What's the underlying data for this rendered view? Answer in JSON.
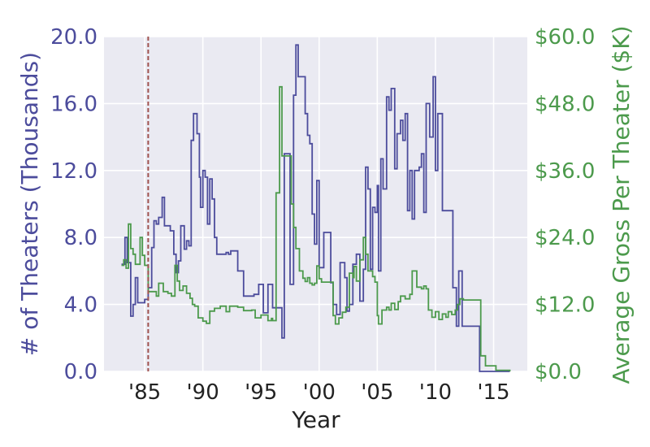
{
  "chart_data": {
    "type": "line",
    "xlabel": "Year",
    "ylabel_left": "# of Theaters (Thousands)",
    "ylabel_right": "Average Gross Per Theater ($K)",
    "xlim": [
      1981.5,
      2017.9
    ],
    "ylim_left": [
      0,
      20
    ],
    "ylim_right": [
      0,
      60
    ],
    "x_ticks": [
      {
        "value": 1985,
        "label": "'85"
      },
      {
        "value": 1990,
        "label": "'90"
      },
      {
        "value": 1995,
        "label": "'95"
      },
      {
        "value": 2000,
        "label": "'00"
      },
      {
        "value": 2005,
        "label": "'05"
      },
      {
        "value": 2010,
        "label": "'10"
      },
      {
        "value": 2015,
        "label": "'15"
      }
    ],
    "y_ticks_left": [
      {
        "value": 0,
        "label": "0.0"
      },
      {
        "value": 4,
        "label": "4.0"
      },
      {
        "value": 8,
        "label": "8.0"
      },
      {
        "value": 12,
        "label": "12.0"
      },
      {
        "value": 16,
        "label": "16.0"
      },
      {
        "value": 20,
        "label": "20.0"
      }
    ],
    "y_ticks_right": [
      {
        "value": 0,
        "label": "$0.0"
      },
      {
        "value": 12,
        "label": "$12.0"
      },
      {
        "value": 24,
        "label": "$24.0"
      },
      {
        "value": 36,
        "label": "$36.0"
      },
      {
        "value": 48,
        "label": "$48.0"
      },
      {
        "value": 60,
        "label": "$60.0"
      }
    ],
    "grid": true,
    "vline": {
      "x": 1985.3,
      "color": "#a0524f",
      "style": "dashed"
    },
    "colors": {
      "background": "#eaeaf2",
      "grid": "#ffffff",
      "theaters": "#4c4c9c",
      "gross": "#4c9a4c",
      "left_axis_text": "#4c4c9c",
      "right_axis_text": "#4c9a4c",
      "xlabel_text": "#222222"
    },
    "series": [
      {
        "axis": "left",
        "color": "#4c4c9c",
        "step": true,
        "points": [
          [
            1983.0,
            6.4
          ],
          [
            1983.3,
            8.0
          ],
          [
            1983.5,
            6.5
          ],
          [
            1983.8,
            3.3
          ],
          [
            1984.0,
            4.0
          ],
          [
            1984.2,
            5.6
          ],
          [
            1984.4,
            4.1
          ],
          [
            1985.0,
            4.3
          ],
          [
            1985.3,
            5.0
          ],
          [
            1985.6,
            7.4
          ],
          [
            1985.8,
            9.0
          ],
          [
            1986.0,
            8.8
          ],
          [
            1986.2,
            9.2
          ],
          [
            1986.5,
            10.4
          ],
          [
            1986.7,
            8.7
          ],
          [
            1987.2,
            8.4
          ],
          [
            1987.5,
            7.0
          ],
          [
            1987.7,
            5.9
          ],
          [
            1987.9,
            6.6
          ],
          [
            1988.1,
            8.7
          ],
          [
            1988.4,
            7.3
          ],
          [
            1988.6,
            7.8
          ],
          [
            1988.8,
            7.5
          ],
          [
            1989.0,
            13.8
          ],
          [
            1989.2,
            15.4
          ],
          [
            1989.5,
            14.2
          ],
          [
            1989.7,
            11.6
          ],
          [
            1989.8,
            9.8
          ],
          [
            1990.0,
            12.0
          ],
          [
            1990.2,
            11.6
          ],
          [
            1990.4,
            8.8
          ],
          [
            1990.6,
            11.5
          ],
          [
            1990.8,
            10.3
          ],
          [
            1991.0,
            8.0
          ],
          [
            1991.2,
            7.0
          ],
          [
            1992.0,
            7.1
          ],
          [
            1992.2,
            7.0
          ],
          [
            1992.4,
            7.2
          ],
          [
            1992.6,
            7.2
          ],
          [
            1993.0,
            6.0
          ],
          [
            1993.5,
            4.5
          ],
          [
            1994.4,
            4.6
          ],
          [
            1994.8,
            5.2
          ],
          [
            1995.2,
            3.5
          ],
          [
            1995.6,
            5.2
          ],
          [
            1996.0,
            3.8
          ],
          [
            1996.5,
            3.8
          ],
          [
            1996.8,
            2.0
          ],
          [
            1997.0,
            13.0
          ],
          [
            1997.5,
            5.2
          ],
          [
            1997.8,
            16.5
          ],
          [
            1998.0,
            19.5
          ],
          [
            1998.2,
            17.6
          ],
          [
            1998.8,
            15.4
          ],
          [
            1999.0,
            14.1
          ],
          [
            1999.2,
            13.6
          ],
          [
            1999.4,
            9.4
          ],
          [
            1999.6,
            7.6
          ],
          [
            1999.8,
            11.4
          ],
          [
            2000.0,
            6.2
          ],
          [
            2000.4,
            8.3
          ],
          [
            2001.0,
            5.3
          ],
          [
            2001.2,
            4.0
          ],
          [
            2001.5,
            3.4
          ],
          [
            2001.8,
            6.5
          ],
          [
            2002.2,
            5.6
          ],
          [
            2002.4,
            3.6
          ],
          [
            2002.6,
            4.0
          ],
          [
            2002.9,
            6.4
          ],
          [
            2003.2,
            7.0
          ],
          [
            2003.5,
            4.2
          ],
          [
            2003.8,
            6.1
          ],
          [
            2004.0,
            12.2
          ],
          [
            2004.2,
            10.9
          ],
          [
            2004.4,
            6.1
          ],
          [
            2004.6,
            9.8
          ],
          [
            2004.8,
            9.5
          ],
          [
            2005.0,
            11.1
          ],
          [
            2005.1,
            6.0
          ],
          [
            2005.3,
            12.7
          ],
          [
            2005.5,
            10.9
          ],
          [
            2005.8,
            16.4
          ],
          [
            2006.0,
            15.6
          ],
          [
            2006.2,
            16.9
          ],
          [
            2006.5,
            12.1
          ],
          [
            2006.7,
            14.2
          ],
          [
            2007.0,
            15.0
          ],
          [
            2007.2,
            13.8
          ],
          [
            2007.4,
            15.4
          ],
          [
            2007.6,
            9.6
          ],
          [
            2007.8,
            12.0
          ],
          [
            2008.0,
            9.1
          ],
          [
            2008.2,
            12.0
          ],
          [
            2008.6,
            12.2
          ],
          [
            2008.8,
            13.0
          ],
          [
            2009.0,
            9.5
          ],
          [
            2009.2,
            16.0
          ],
          [
            2009.5,
            14.0
          ],
          [
            2009.8,
            17.6
          ],
          [
            2010.0,
            12.0
          ],
          [
            2010.2,
            15.4
          ],
          [
            2010.6,
            9.6
          ],
          [
            2011.0,
            9.6
          ],
          [
            2011.5,
            5.0
          ],
          [
            2011.8,
            2.7
          ],
          [
            2012.0,
            6.0
          ],
          [
            2012.3,
            2.7
          ],
          [
            2013.8,
            0.0
          ],
          [
            2016.4,
            0.0
          ]
        ]
      },
      {
        "axis": "right",
        "color": "#4c9a4c",
        "step": true,
        "points": [
          [
            1983.0,
            19.0
          ],
          [
            1983.2,
            20.0
          ],
          [
            1983.4,
            18.5
          ],
          [
            1983.6,
            26.4
          ],
          [
            1983.8,
            22.0
          ],
          [
            1984.0,
            21.0
          ],
          [
            1984.2,
            19.2
          ],
          [
            1984.6,
            24.0
          ],
          [
            1984.8,
            20.8
          ],
          [
            1985.0,
            19.0
          ],
          [
            1985.3,
            14.3
          ],
          [
            1986.0,
            13.5
          ],
          [
            1986.2,
            15.8
          ],
          [
            1986.6,
            14.3
          ],
          [
            1987.0,
            14.0
          ],
          [
            1987.3,
            13.5
          ],
          [
            1987.6,
            19.0
          ],
          [
            1987.8,
            16.2
          ],
          [
            1988.0,
            14.5
          ],
          [
            1988.3,
            15.3
          ],
          [
            1988.6,
            14.0
          ],
          [
            1988.9,
            13.1
          ],
          [
            1989.1,
            12.0
          ],
          [
            1989.3,
            11.7
          ],
          [
            1989.6,
            9.6
          ],
          [
            1990.0,
            9.0
          ],
          [
            1990.3,
            8.6
          ],
          [
            1990.6,
            10.8
          ],
          [
            1991.0,
            11.3
          ],
          [
            1991.5,
            11.7
          ],
          [
            1992.0,
            10.7
          ],
          [
            1992.3,
            11.7
          ],
          [
            1993.0,
            11.5
          ],
          [
            1993.5,
            10.9
          ],
          [
            1994.2,
            11.0
          ],
          [
            1994.5,
            9.6
          ],
          [
            1995.0,
            10.1
          ],
          [
            1995.6,
            9.1
          ],
          [
            1995.9,
            9.5
          ],
          [
            1996.0,
            9.1
          ],
          [
            1996.3,
            32.0
          ],
          [
            1996.6,
            51.0
          ],
          [
            1996.8,
            38.6
          ],
          [
            1997.6,
            30.0
          ],
          [
            1997.8,
            25.8
          ],
          [
            1998.0,
            22.0
          ],
          [
            1998.3,
            18.0
          ],
          [
            1998.6,
            16.7
          ],
          [
            1998.8,
            16.1
          ],
          [
            1999.0,
            16.8
          ],
          [
            1999.2,
            15.8
          ],
          [
            1999.4,
            15.5
          ],
          [
            1999.6,
            15.8
          ],
          [
            1999.8,
            18.9
          ],
          [
            2000.0,
            16.6
          ],
          [
            2000.2,
            16.0
          ],
          [
            2001.0,
            16.0
          ],
          [
            2001.2,
            10.0
          ],
          [
            2001.4,
            8.5
          ],
          [
            2001.7,
            9.6
          ],
          [
            2002.0,
            10.6
          ],
          [
            2002.3,
            11.5
          ],
          [
            2002.6,
            17.6
          ],
          [
            2002.9,
            16.8
          ],
          [
            2003.0,
            18.8
          ],
          [
            2003.2,
            16.2
          ],
          [
            2003.5,
            20.0
          ],
          [
            2003.8,
            24.0
          ],
          [
            2004.0,
            21.0
          ],
          [
            2004.2,
            18.0
          ],
          [
            2004.6,
            17.0
          ],
          [
            2004.8,
            16.0
          ],
          [
            2005.0,
            10.0
          ],
          [
            2005.1,
            8.5
          ],
          [
            2005.4,
            11.0
          ],
          [
            2005.8,
            11.5
          ],
          [
            2006.0,
            11.0
          ],
          [
            2006.2,
            12.2
          ],
          [
            2006.5,
            11.1
          ],
          [
            2006.8,
            12.5
          ],
          [
            2007.0,
            13.5
          ],
          [
            2007.4,
            13.0
          ],
          [
            2007.8,
            13.8
          ],
          [
            2008.0,
            18.0
          ],
          [
            2008.4,
            15.1
          ],
          [
            2008.8,
            14.8
          ],
          [
            2009.0,
            15.3
          ],
          [
            2009.2,
            14.8
          ],
          [
            2009.4,
            11.0
          ],
          [
            2009.7,
            9.7
          ],
          [
            2010.0,
            10.7
          ],
          [
            2010.3,
            9.3
          ],
          [
            2010.6,
            10.3
          ],
          [
            2010.9,
            9.7
          ],
          [
            2011.1,
            10.7
          ],
          [
            2011.4,
            10.2
          ],
          [
            2011.7,
            11.0
          ],
          [
            2011.9,
            12.0
          ],
          [
            2012.1,
            13.0
          ],
          [
            2012.4,
            12.8
          ],
          [
            2013.9,
            2.8
          ],
          [
            2014.3,
            1.0
          ],
          [
            2015.2,
            0.2
          ],
          [
            2016.4,
            0.0
          ]
        ]
      }
    ]
  }
}
